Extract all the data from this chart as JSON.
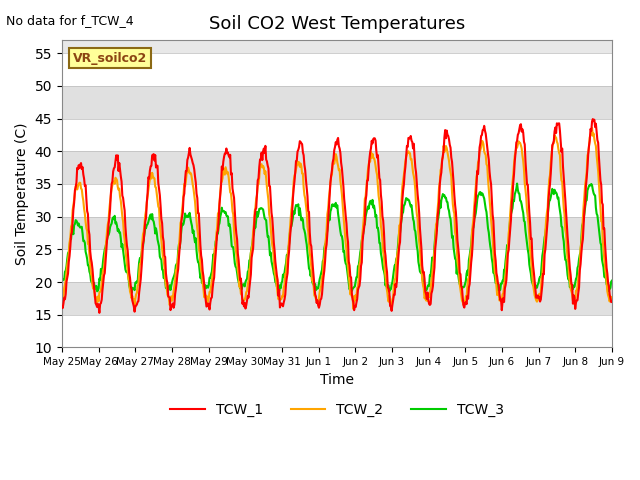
{
  "title": "Soil CO2 West Temperatures",
  "no_data_text": "No data for f_TCW_4",
  "annotation_text": "VR_soilco2",
  "xlabel": "Time",
  "ylabel": "Soil Temperature (C)",
  "ylim": [
    10,
    57
  ],
  "yticks": [
    10,
    15,
    20,
    25,
    30,
    35,
    40,
    45,
    50,
    55
  ],
  "background_color": "#ffffff",
  "plot_bg_color": "#e8e8e8",
  "line_colors": {
    "TCW_1": "#ff0000",
    "TCW_2": "#ffa500",
    "TCW_3": "#00cc00"
  },
  "line_width": 1.5,
  "xtick_labels": [
    "May 25",
    "May 26",
    "May 27",
    "May 28",
    "May 29",
    "May 30",
    "May 31",
    "Jun 1",
    "Jun 2",
    "Jun 3",
    "Jun 4",
    "Jun 5",
    "Jun 6",
    "Jun 7",
    "Jun 8",
    "Jun 9"
  ],
  "legend_entries": [
    "TCW_1",
    "TCW_2",
    "TCW_3"
  ]
}
